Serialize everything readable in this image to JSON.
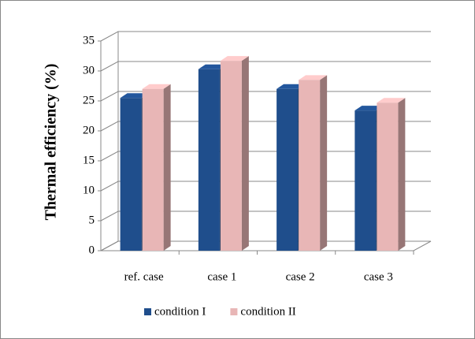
{
  "chart_data": {
    "type": "bar3d",
    "y_label": "Thermal  efficiency (%)",
    "categories": [
      "ref. case",
      "case 1",
      "case 2",
      "case 3"
    ],
    "series": [
      {
        "name": "condition I",
        "color": "#1f4e8c",
        "values": [
          25.5,
          30.3,
          27,
          23.4
        ]
      },
      {
        "name": "condition II",
        "color": "#e8b6b6",
        "values": [
          27,
          31.7,
          28.5,
          24.7
        ]
      }
    ],
    "ylim": [
      0,
      35
    ],
    "yticks": [
      0,
      5,
      10,
      15,
      20,
      25,
      30,
      35
    ],
    "grid": true,
    "legend": "bottom"
  }
}
